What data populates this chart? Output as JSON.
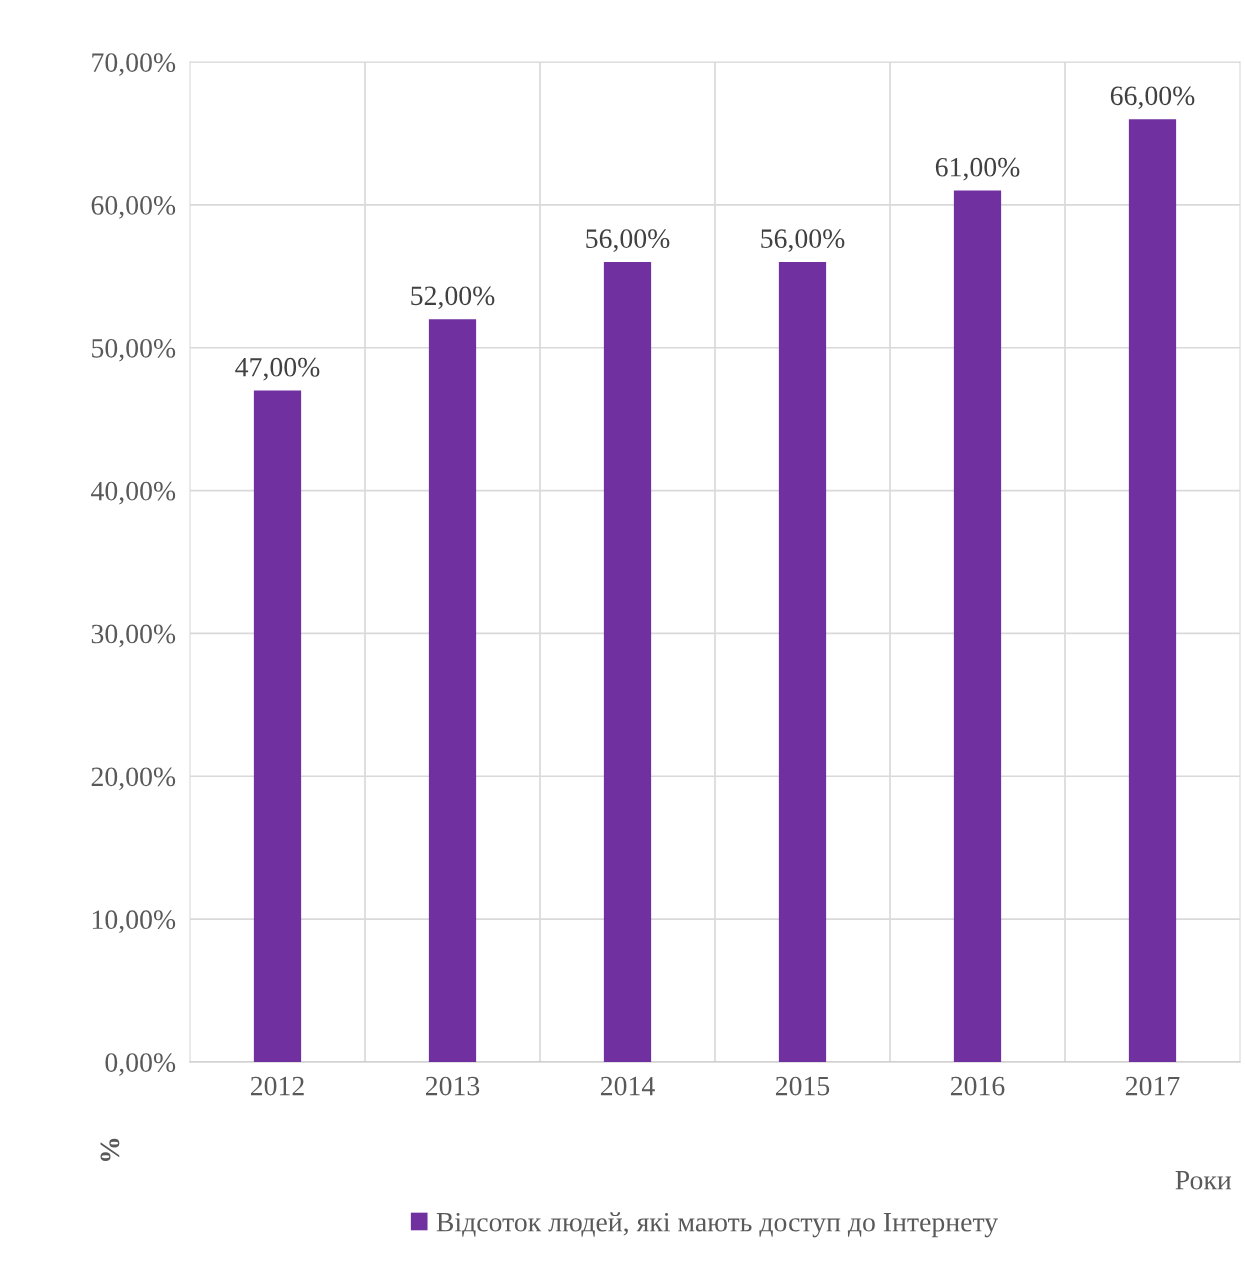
{
  "chart_data": {
    "type": "bar",
    "xlabel": "Роки",
    "ylabel": "%",
    "categories": [
      "2012",
      "2013",
      "2014",
      "2015",
      "2016",
      "2017"
    ],
    "series": [
      {
        "name": "Відсоток людей, які мають доступ до Інтернету",
        "color": "#7030a0",
        "values": [
          47,
          52,
          56,
          56,
          61,
          66
        ],
        "value_labels": [
          "47,00%",
          "52,00%",
          "56,00%",
          "56,00%",
          "61,00%",
          "66,00%"
        ]
      }
    ],
    "ylim": [
      0,
      70
    ],
    "yticks": [
      {
        "value": 0,
        "label": "0,00%"
      },
      {
        "value": 10,
        "label": "10,00%"
      },
      {
        "value": 20,
        "label": "20,00%"
      },
      {
        "value": 30,
        "label": "30,00%"
      },
      {
        "value": 40,
        "label": "40,00%"
      },
      {
        "value": 50,
        "label": "50,00%"
      },
      {
        "value": 60,
        "label": "60,00%"
      },
      {
        "value": 70,
        "label": "70,00%"
      }
    ],
    "grid": true,
    "legend": "bottom"
  }
}
